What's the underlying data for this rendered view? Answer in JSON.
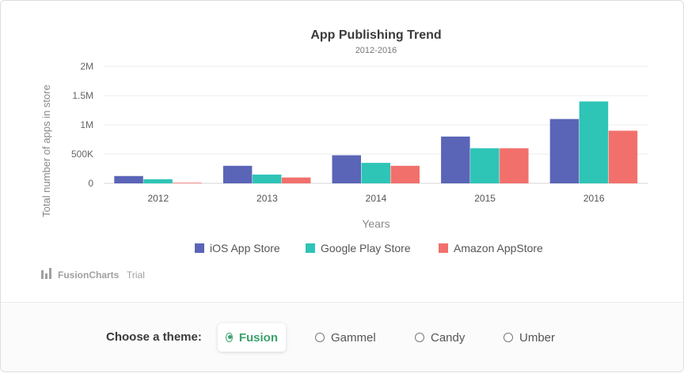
{
  "chart_data": {
    "type": "bar",
    "title": "App Publishing Trend",
    "subtitle": "2012-2016",
    "xlabel": "Years",
    "ylabel": "Total number of apps in store",
    "categories": [
      "2012",
      "2013",
      "2014",
      "2015",
      "2016"
    ],
    "ylim": [
      0,
      2000000
    ],
    "yticks": [
      0,
      500000,
      1000000,
      1500000,
      2000000
    ],
    "ytick_labels": [
      "0",
      "500K",
      "1M",
      "1.5M",
      "2M"
    ],
    "series": [
      {
        "name": "iOS App Store",
        "color": "#5a65b7",
        "values": [
          125000,
          300000,
          480000,
          800000,
          1100000
        ]
      },
      {
        "name": "Google Play Store",
        "color": "#2ec4b6",
        "values": [
          70000,
          150000,
          350000,
          600000,
          1400000
        ]
      },
      {
        "name": "Amazon AppStore",
        "color": "#f2706c",
        "values": [
          10000,
          100000,
          300000,
          600000,
          900000
        ]
      }
    ],
    "grid": true,
    "legend_position": "bottom"
  },
  "watermark": {
    "brand": "FusionCharts",
    "suffix": "Trial"
  },
  "theme_selector": {
    "label": "Choose a theme:",
    "options": [
      "Fusion",
      "Gammel",
      "Candy",
      "Umber"
    ],
    "selected": "Fusion"
  }
}
